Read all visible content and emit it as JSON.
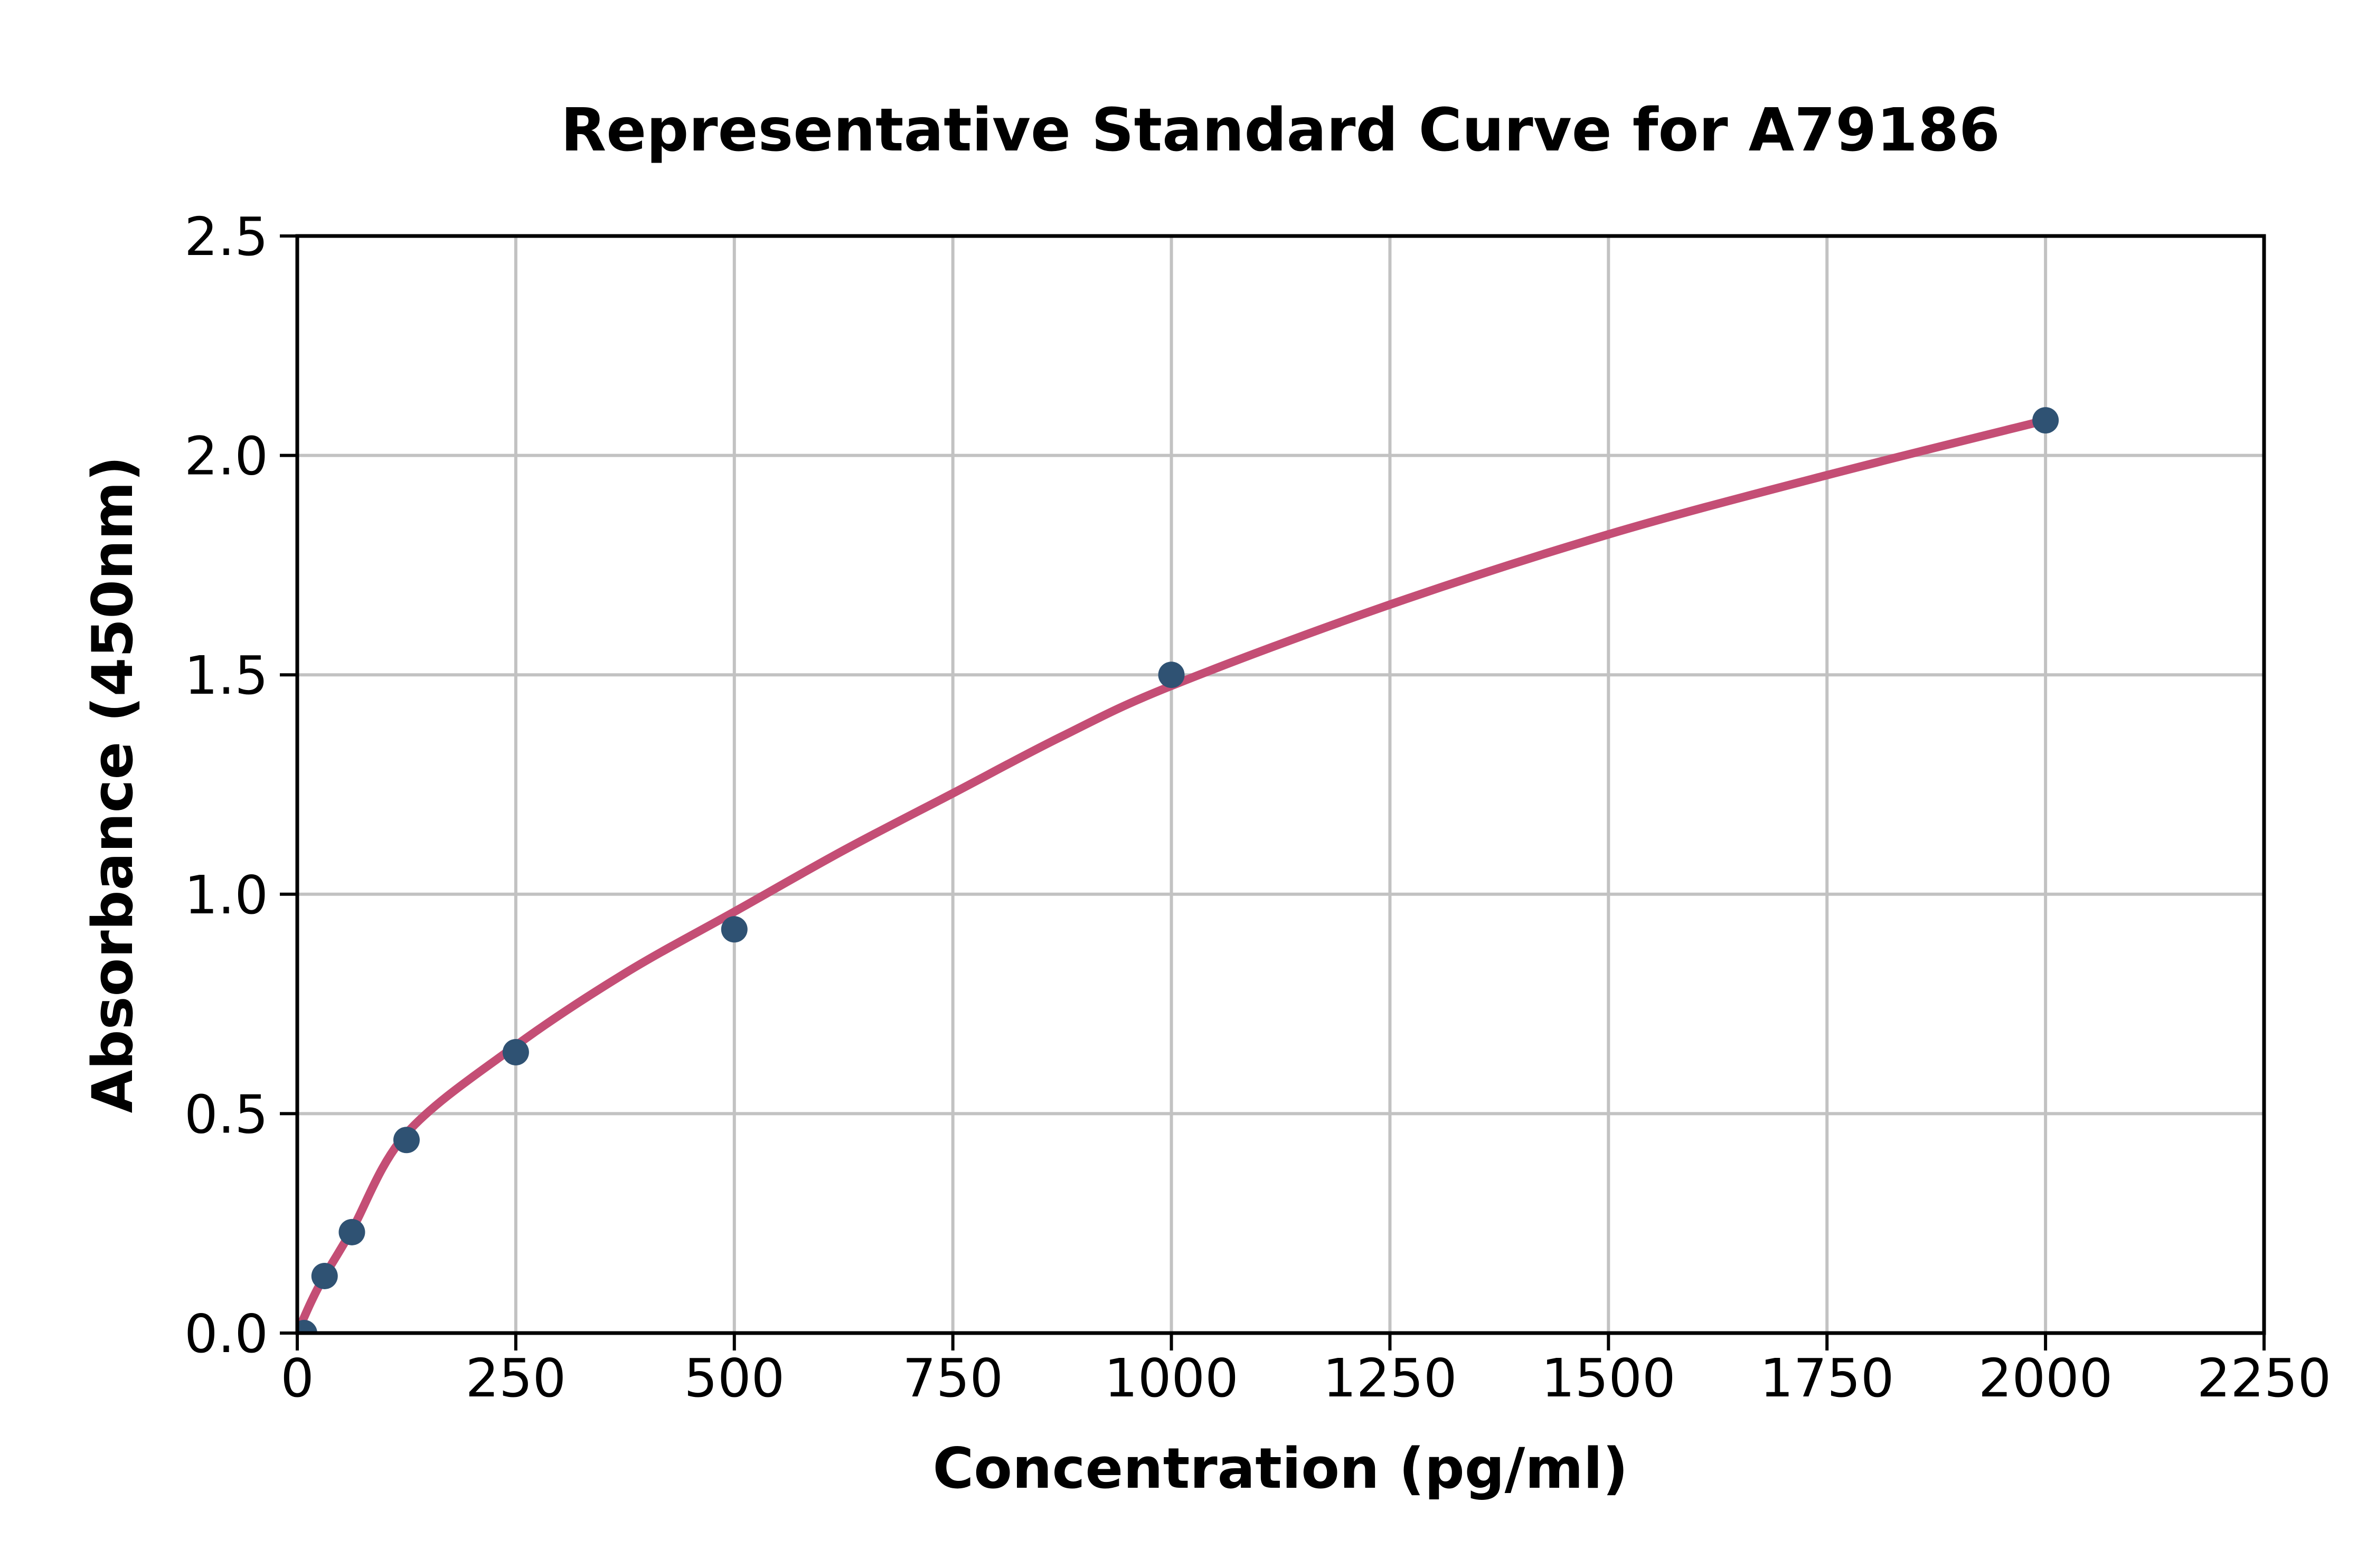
{
  "chart_data": {
    "type": "scatter",
    "title": "Representative Standard Curve for A79186",
    "xlabel": "Concentration (pg/ml)",
    "ylabel": "Absorbance (450nm)",
    "xlim": [
      0,
      2250
    ],
    "ylim": [
      0,
      2.5
    ],
    "x_ticks": [
      0,
      250,
      500,
      750,
      1000,
      1250,
      1500,
      1750,
      2000,
      2250
    ],
    "x_tick_labels": [
      "0",
      "250",
      "500",
      "750",
      "1000",
      "1250",
      "1500",
      "1750",
      "2000",
      "2250"
    ],
    "y_ticks": [
      0.0,
      0.5,
      1.0,
      1.5,
      2.0,
      2.5
    ],
    "y_tick_labels": [
      "0.0",
      "0.5",
      "1.0",
      "1.5",
      "2.0",
      "2.5"
    ],
    "grid": true,
    "legend_position": "none",
    "series": [
      {
        "name": "standard-data-points",
        "type": "scatter",
        "color": "#2f5273",
        "points": [
          [
            7.8,
            0.0
          ],
          [
            31.25,
            0.13
          ],
          [
            62.5,
            0.23
          ],
          [
            125,
            0.44
          ],
          [
            250,
            0.64
          ],
          [
            500,
            0.92
          ],
          [
            1000,
            1.5
          ],
          [
            2000,
            2.08
          ]
        ]
      },
      {
        "name": "fitted-standard-curve",
        "type": "line",
        "color": "#c44e75",
        "points": [
          [
            0,
            0
          ],
          [
            15.6,
            0.07
          ],
          [
            31.25,
            0.13
          ],
          [
            62.5,
            0.235
          ],
          [
            125,
            0.455
          ],
          [
            250,
            0.655
          ],
          [
            375,
            0.82
          ],
          [
            500,
            0.96
          ],
          [
            625,
            1.1
          ],
          [
            750,
            1.23
          ],
          [
            875,
            1.36
          ],
          [
            1000,
            1.475
          ],
          [
            1250,
            1.66
          ],
          [
            1500,
            1.82
          ],
          [
            1750,
            1.955
          ],
          [
            2000,
            2.08
          ]
        ]
      }
    ],
    "colors": {
      "marker": "#2f5273",
      "line": "#c44e75",
      "grid": "#c2c2c2",
      "axis": "#000000",
      "background": "#ffffff"
    }
  }
}
